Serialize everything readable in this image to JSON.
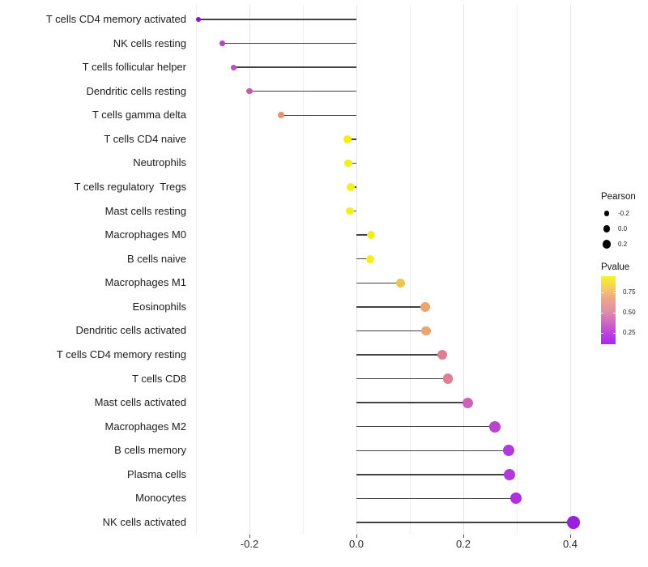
{
  "chart_data": {
    "type": "scatter",
    "variant": "lollipop",
    "orientation": "horizontal",
    "title": "",
    "xlabel": "",
    "ylabel": "",
    "x_axis": {
      "range": [
        -0.335,
        0.435
      ],
      "major_ticks": [
        -0.2,
        0.0,
        0.2,
        0.4
      ],
      "major_tick_labels": [
        "-0.2",
        "0.0",
        "0.2",
        "0.4"
      ],
      "minor_ticks": [
        -0.3,
        -0.1,
        0.1,
        0.3
      ],
      "grid": "vertical-only"
    },
    "points": [
      {
        "label": "T cells CD4 memory activated",
        "pearson": -0.295,
        "color": "#8a15d6"
      },
      {
        "label": "NK cells resting",
        "pearson": -0.251,
        "color": "#b844c4"
      },
      {
        "label": "T cells follicular helper",
        "pearson": -0.23,
        "color": "#bf4ec0"
      },
      {
        "label": "Dendritic cells resting",
        "pearson": -0.2,
        "color": "#c75aae"
      },
      {
        "label": "T cells gamma delta",
        "pearson": -0.141,
        "color": "#e8936d"
      },
      {
        "label": "T cells CD4 naive",
        "pearson": -0.017,
        "color": "#f4ee21"
      },
      {
        "label": "Neutrophils",
        "pearson": -0.015,
        "color": "#f4ee21"
      },
      {
        "label": "T cells regulatory  Tregs",
        "pearson": -0.011,
        "color": "#f4ee21"
      },
      {
        "label": "Mast cells resting",
        "pearson": -0.012,
        "color": "#f4ee21"
      },
      {
        "label": "Macrophages M0",
        "pearson": 0.027,
        "color": "#f4ee21"
      },
      {
        "label": "B cells naive",
        "pearson": 0.026,
        "color": "#f4ee21"
      },
      {
        "label": "Macrophages M1",
        "pearson": 0.082,
        "color": "#eec44e"
      },
      {
        "label": "Eosinophils",
        "pearson": 0.129,
        "color": "#eda46e"
      },
      {
        "label": "Dendritic cells activated",
        "pearson": 0.13,
        "color": "#eda570"
      },
      {
        "label": "T cells CD4 memory resting",
        "pearson": 0.161,
        "color": "#dd7f93"
      },
      {
        "label": "T cells CD8",
        "pearson": 0.171,
        "color": "#dd7f98"
      },
      {
        "label": "Mast cells activated",
        "pearson": 0.209,
        "color": "#cc62b5"
      },
      {
        "label": "Macrophages M2",
        "pearson": 0.259,
        "color": "#bb44cc"
      },
      {
        "label": "B cells memory",
        "pearson": 0.285,
        "color": "#b13add"
      },
      {
        "label": "Plasma cells",
        "pearson": 0.286,
        "color": "#b13add"
      },
      {
        "label": "Monocytes",
        "pearson": 0.299,
        "color": "#ad32dd"
      },
      {
        "label": "NK cells activated",
        "pearson": 0.406,
        "color": "#9a20dd"
      }
    ],
    "legend": {
      "pearson": {
        "title": "Pearson",
        "size_values": [
          -0.2,
          0.0,
          0.2
        ],
        "size_labels": [
          "-0.2",
          "0.0",
          "0.2"
        ]
      },
      "pvalue": {
        "title": "Pvalue",
        "tick_values": [
          0.75,
          0.5,
          0.25
        ],
        "tick_labels": [
          "0.75",
          "0.50",
          "0.25"
        ],
        "bar_value_top": 0.95,
        "bar_value_bottom": 0.11,
        "gradient_top_to_bottom": [
          "#f8f51e",
          "#f6ce62",
          "#eda58b",
          "#e191a6",
          "#d06bc0",
          "#bb43dc",
          "#a826f2"
        ]
      }
    },
    "colors": {
      "stem": "#424242",
      "grid_major": "#e3e3e3",
      "grid_minor": "#f0f0f0",
      "axis_text": "#1c1c1c",
      "legend_dot": "#000000"
    }
  }
}
